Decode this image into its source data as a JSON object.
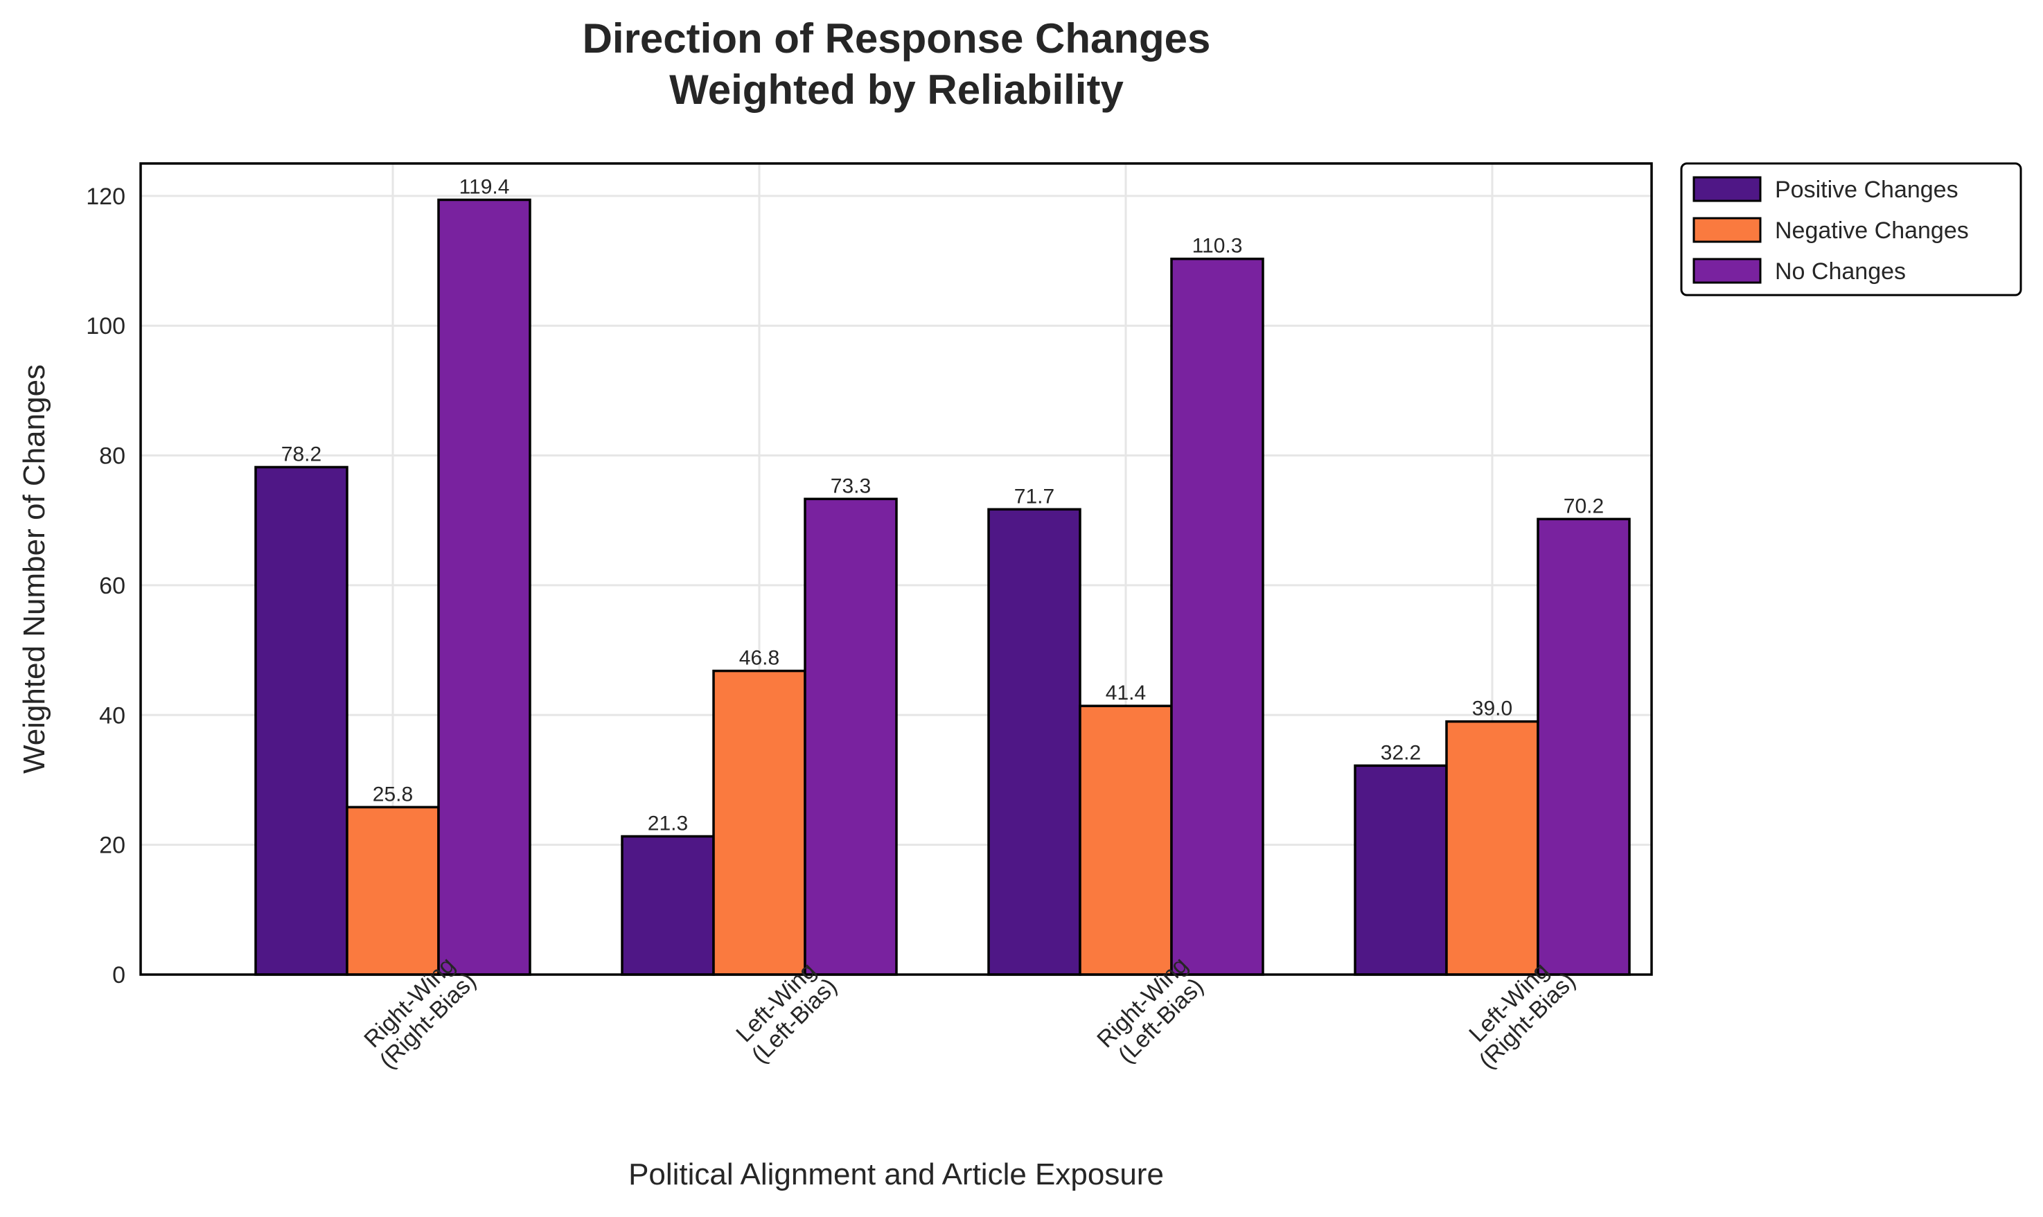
{
  "chart_data": {
    "type": "bar",
    "title_lines": [
      "Direction of Response Changes",
      "Weighted by Reliability"
    ],
    "xlabel": "Political Alignment and Article Exposure",
    "ylabel": "Weighted Number of Changes",
    "categories": [
      [
        "Right-Wing",
        "(Right-Bias)"
      ],
      [
        "Left-Wing",
        "(Left-Bias)"
      ],
      [
        "Right-Wing",
        "(Left-Bias)"
      ],
      [
        "Left-Wing",
        "(Right-Bias)"
      ]
    ],
    "series": [
      {
        "name": "Positive Changes",
        "color": "#4f1786",
        "values": [
          78.2,
          21.3,
          71.7,
          32.2
        ]
      },
      {
        "name": "Negative Changes",
        "color": "#fa7a3f",
        "values": [
          25.8,
          46.8,
          41.4,
          39.0
        ]
      },
      {
        "name": "No Changes",
        "color": "#79229f",
        "values": [
          119.4,
          73.3,
          110.3,
          70.2
        ]
      }
    ],
    "value_labels": [
      [
        "78.2",
        "21.3",
        "71.7",
        "32.2"
      ],
      [
        "25.8",
        "46.8",
        "41.4",
        "39.0"
      ],
      [
        "119.4",
        "73.3",
        "110.3",
        "70.2"
      ]
    ],
    "ylim": [
      0,
      125
    ],
    "yticks": [
      0,
      20,
      40,
      60,
      80,
      100,
      120
    ],
    "ytick_labels": [
      "0",
      "20",
      "40",
      "60",
      "80",
      "100",
      "120"
    ],
    "grid": true,
    "legend_position": "outside top-right",
    "x_tick_rotation_deg": 45
  }
}
